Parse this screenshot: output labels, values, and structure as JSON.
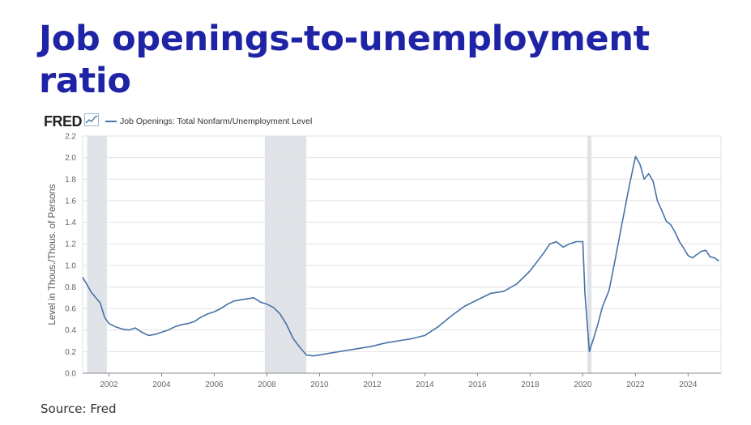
{
  "slide": {
    "title": "Job openings-to-unemployment ratio",
    "source": "Source: Fred"
  },
  "colors": {
    "title": "#1f23a6",
    "series": "#4572a7",
    "recession": "#dfe3e8",
    "grid": "#e2e2e2"
  },
  "fred": {
    "logo": "FRED",
    "icon": "chart-line-icon",
    "legend": "Job Openings: Total Nonfarm/Unemployment Level"
  },
  "chart_data": {
    "type": "line",
    "ylabel": "Level in Thous./Thous. of Persons",
    "xlabel": "",
    "ylim": [
      0.0,
      2.2
    ],
    "xlim": [
      2001.0,
      2025.25
    ],
    "yticks": [
      "0.0",
      "0.2",
      "0.4",
      "0.6",
      "0.8",
      "1.0",
      "1.2",
      "1.4",
      "1.6",
      "1.8",
      "2.0",
      "2.2"
    ],
    "xticks": [
      "2002",
      "2004",
      "2006",
      "2008",
      "2010",
      "2012",
      "2014",
      "2016",
      "2018",
      "2020",
      "2022",
      "2024"
    ],
    "grid": true,
    "legend_position": "top-left",
    "recessions": [
      [
        2001.17,
        2001.92
      ],
      [
        2007.92,
        2009.5
      ],
      [
        2020.17,
        2020.33
      ]
    ],
    "series": [
      {
        "name": "Job Openings: Total Nonfarm/Unemployment Level",
        "x": [
          2001.0,
          2001.17,
          2001.33,
          2001.5,
          2001.67,
          2001.83,
          2002.0,
          2002.25,
          2002.5,
          2002.75,
          2003.0,
          2003.25,
          2003.5,
          2003.75,
          2004.0,
          2004.25,
          2004.5,
          2004.75,
          2005.0,
          2005.25,
          2005.5,
          2005.75,
          2006.0,
          2006.25,
          2006.5,
          2006.75,
          2007.0,
          2007.25,
          2007.5,
          2007.75,
          2008.0,
          2008.25,
          2008.5,
          2008.75,
          2009.0,
          2009.25,
          2009.5,
          2009.75,
          2010.0,
          2010.5,
          2011.0,
          2011.5,
          2012.0,
          2012.5,
          2013.0,
          2013.5,
          2014.0,
          2014.5,
          2015.0,
          2015.5,
          2016.0,
          2016.5,
          2017.0,
          2017.5,
          2018.0,
          2018.5,
          2018.75,
          2019.0,
          2019.25,
          2019.5,
          2019.75,
          2020.0,
          2020.08,
          2020.25,
          2020.42,
          2020.58,
          2020.75,
          2021.0,
          2021.25,
          2021.5,
          2021.75,
          2022.0,
          2022.17,
          2022.33,
          2022.5,
          2022.67,
          2022.83,
          2023.0,
          2023.17,
          2023.33,
          2023.5,
          2023.67,
          2023.83,
          2024.0,
          2024.17,
          2024.33,
          2024.5,
          2024.67,
          2024.83,
          2025.0,
          2025.17
        ],
        "y": [
          0.89,
          0.82,
          0.75,
          0.7,
          0.65,
          0.52,
          0.46,
          0.43,
          0.41,
          0.4,
          0.42,
          0.38,
          0.35,
          0.36,
          0.38,
          0.4,
          0.43,
          0.45,
          0.46,
          0.48,
          0.52,
          0.55,
          0.57,
          0.6,
          0.64,
          0.67,
          0.68,
          0.69,
          0.7,
          0.66,
          0.64,
          0.61,
          0.55,
          0.45,
          0.32,
          0.24,
          0.17,
          0.16,
          0.17,
          0.19,
          0.21,
          0.23,
          0.25,
          0.28,
          0.3,
          0.32,
          0.35,
          0.43,
          0.53,
          0.62,
          0.68,
          0.74,
          0.76,
          0.83,
          0.95,
          1.11,
          1.2,
          1.22,
          1.17,
          1.2,
          1.22,
          1.22,
          0.74,
          0.2,
          0.33,
          0.46,
          0.62,
          0.77,
          1.08,
          1.4,
          1.72,
          2.01,
          1.94,
          1.8,
          1.85,
          1.78,
          1.6,
          1.51,
          1.41,
          1.38,
          1.31,
          1.22,
          1.16,
          1.09,
          1.07,
          1.1,
          1.13,
          1.14,
          1.08,
          1.07,
          1.04
        ]
      }
    ]
  }
}
